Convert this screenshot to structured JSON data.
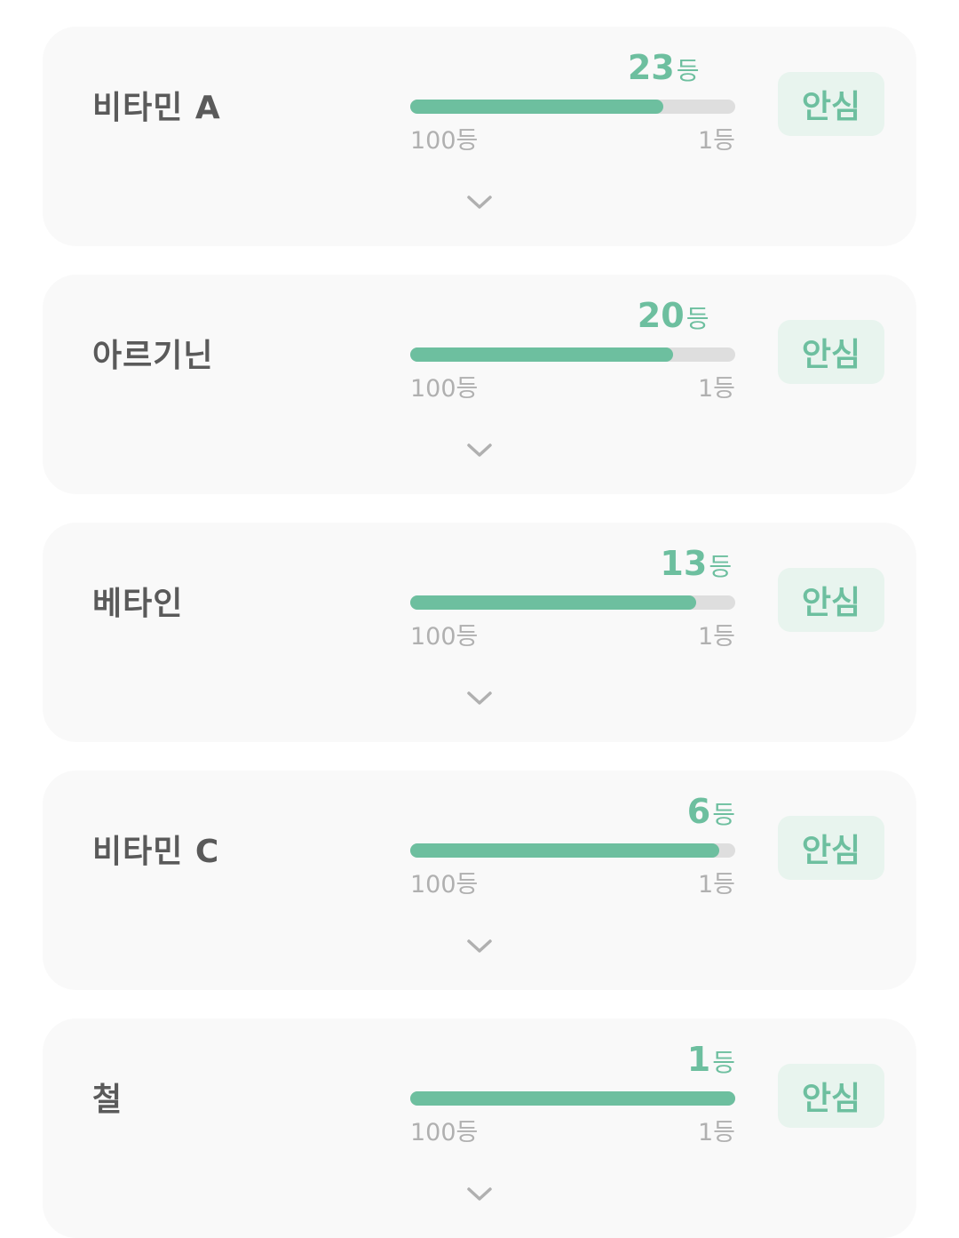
{
  "colors": {
    "accent": "#6dbf9f",
    "badge_bg": "#e8f4ee",
    "track": "#dedede",
    "card_bg": "#f9f9f9"
  },
  "scale": {
    "min_label": "100등",
    "max_label": "1등",
    "unit": "등"
  },
  "items": [
    {
      "name": "비타민 A",
      "rank": 23,
      "status": "안심"
    },
    {
      "name": "아르기닌",
      "rank": 20,
      "status": "안심"
    },
    {
      "name": "베타인",
      "rank": 13,
      "status": "안심"
    },
    {
      "name": "비타민 C",
      "rank": 6,
      "status": "안심"
    },
    {
      "name": "철",
      "rank": 1,
      "status": "안심"
    }
  ],
  "expand_icon": "chevron-down-icon"
}
